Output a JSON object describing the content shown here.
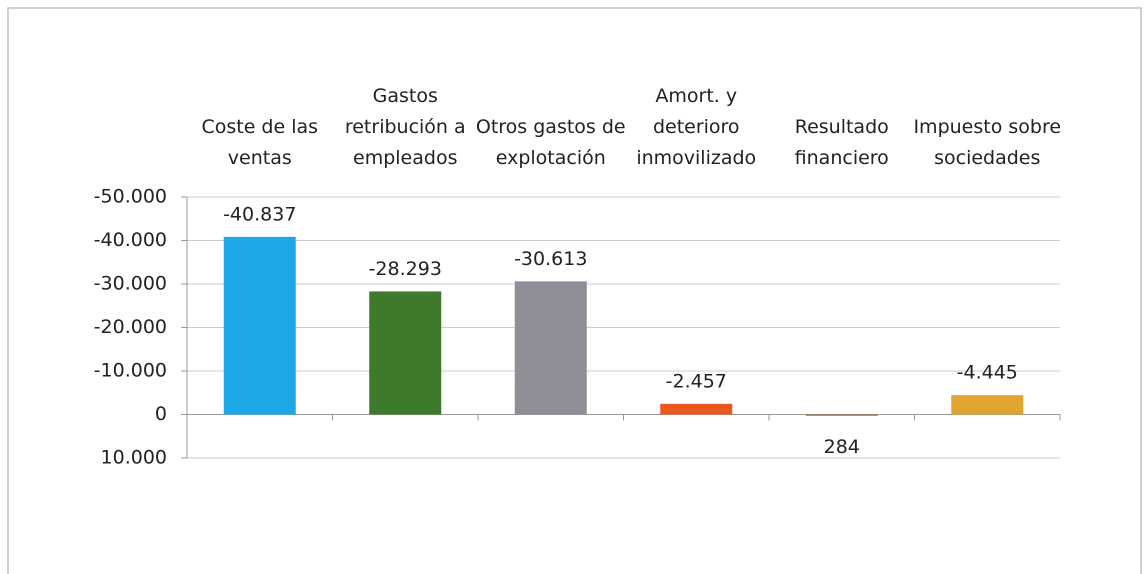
{
  "chart_data": {
    "type": "bar",
    "categories": [
      "Coste de las ventas",
      "Gastos retribución a empleados",
      "Otros gastos de explotación",
      "Amort. y deterioro inmovilizado",
      "Resultado financiero",
      "Impuesto sobre sociedades"
    ],
    "values": [
      -40837,
      -28293,
      -30613,
      -2457,
      284,
      -4445
    ],
    "value_labels": [
      "-40.837",
      "-28.293",
      "-30.613",
      "-2.457",
      "284",
      "-4.445"
    ],
    "colors": [
      "#1ea7e6",
      "#3d7a2b",
      "#8e8e96",
      "#e8591f",
      "#9a6a3a",
      "#e0a530"
    ],
    "ylim": [
      -50000,
      10000
    ],
    "y_inverted": true,
    "yticks": [
      {
        "value": -50000,
        "label": "-50.000"
      },
      {
        "value": -40000,
        "label": "-40.000"
      },
      {
        "value": -30000,
        "label": "-30.000"
      },
      {
        "value": -20000,
        "label": "-20.000"
      },
      {
        "value": -10000,
        "label": "-10.000"
      },
      0,
      {
        "value": 10000,
        "label": "10.000"
      }
    ],
    "grid": true
  }
}
